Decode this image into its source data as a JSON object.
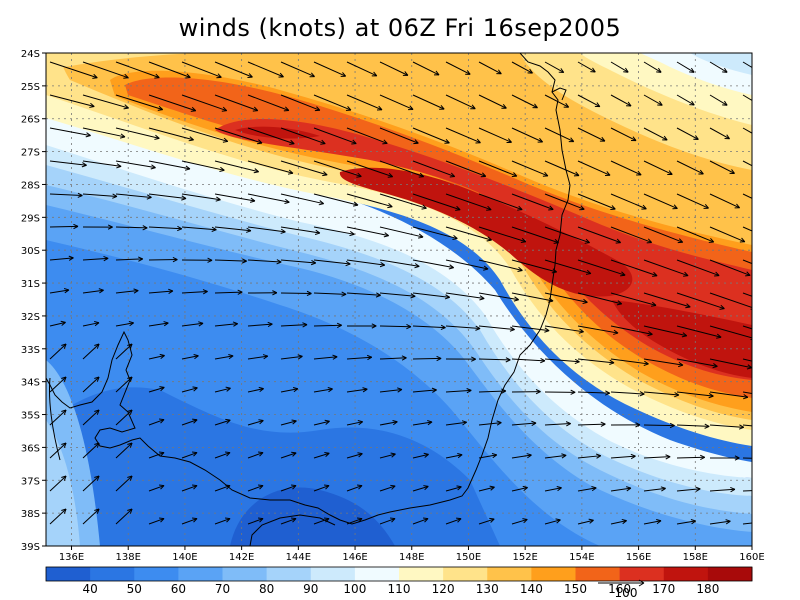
{
  "title": "winds (knots) at 06Z Fri 16sep2005",
  "map": {
    "lon_labels": [
      "136E",
      "138E",
      "140E",
      "142E",
      "144E",
      "146E",
      "148E",
      "150E",
      "152E",
      "154E",
      "156E",
      "158E",
      "160E"
    ],
    "lon_values": [
      136,
      138,
      140,
      142,
      144,
      146,
      148,
      150,
      152,
      154,
      156,
      158,
      160
    ],
    "lat_labels": [
      "24S",
      "25S",
      "26S",
      "27S",
      "28S",
      "29S",
      "30S",
      "31S",
      "32S",
      "33S",
      "34S",
      "35S",
      "36S",
      "37S",
      "38S",
      "39S"
    ],
    "lat_values": [
      -24,
      -25,
      -26,
      -27,
      -28,
      -29,
      -30,
      -31,
      -32,
      -33,
      -34,
      -35,
      -36,
      -37,
      -38,
      -39
    ],
    "lon_range": [
      135.1,
      160.0
    ],
    "lat_range": [
      -39.0,
      -24.0
    ],
    "grid": "dotted",
    "jet_core_max_knots": 180
  },
  "colorbar": {
    "labels": [
      "40",
      "50",
      "60",
      "70",
      "80",
      "90",
      "100",
      "110",
      "120",
      "130",
      "140",
      "150",
      "160",
      "170",
      "180"
    ],
    "colors": [
      "#1f5fd1",
      "#2b76e3",
      "#3d8cf0",
      "#5aa3f5",
      "#7fbcf8",
      "#a5d3fa",
      "#cdeafc",
      "#f0fbff",
      "#fff8c2",
      "#ffe38a",
      "#ffc24a",
      "#ff9f1c",
      "#f26419",
      "#dc3020",
      "#c0140e",
      "#a80a0a"
    ],
    "reference_vector_label": "100"
  },
  "chart_data": {
    "type": "heatmap",
    "title": "winds (knots) at 06Z Fri 16sep2005",
    "variable": "wind speed",
    "units": "knots",
    "color_levels": [
      40,
      50,
      60,
      70,
      80,
      90,
      100,
      110,
      120,
      130,
      140,
      150,
      160,
      170,
      180
    ],
    "xlabel": "",
    "ylabel": "",
    "xlim": [
      135.1,
      160.0
    ],
    "ylim": [
      -39.0,
      -24.0
    ],
    "overlays": [
      "wind vectors",
      "coastline"
    ]
  }
}
